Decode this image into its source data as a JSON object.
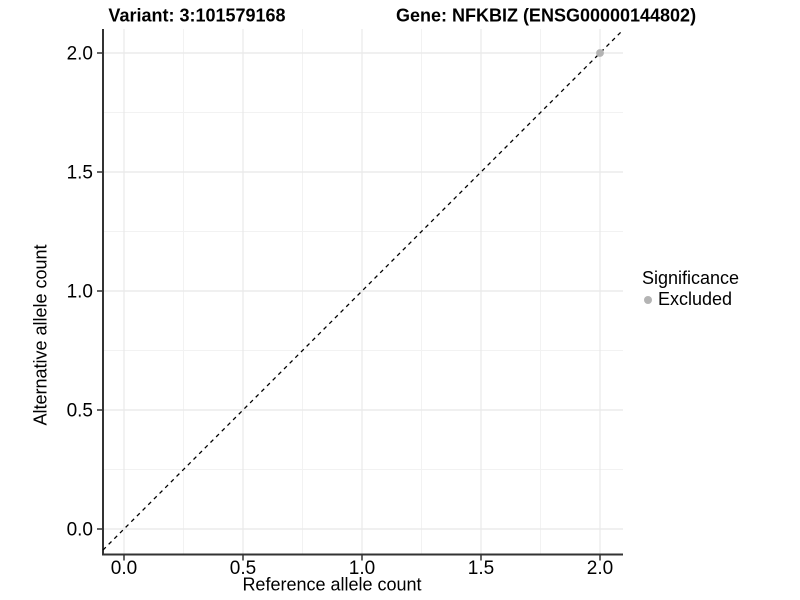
{
  "chart_data": {
    "type": "scatter",
    "titles": {
      "left": "Variant: 3:101579168",
      "right": "Gene: NFKBIZ (ENSG00000144802)"
    },
    "xlabel": "Reference allele count",
    "ylabel": "Alternative allele count",
    "xlim": [
      -0.1,
      2.1
    ],
    "ylim": [
      -0.1,
      2.1
    ],
    "x_ticks": {
      "values": [
        0,
        0.5,
        1,
        1.5,
        2
      ],
      "labels": [
        "0.0",
        "0.5",
        "1.0",
        "1.5",
        "2.0"
      ]
    },
    "y_ticks": {
      "values": [
        0,
        0.5,
        1,
        1.5,
        2
      ],
      "labels": [
        "0.0",
        "0.5",
        "1.0",
        "1.5",
        "2.0"
      ]
    },
    "grid": {
      "major": true,
      "minor": true,
      "major_color": "#e8e8e8",
      "minor_color": "#f2f2f2"
    },
    "axis_line_color": "#333333",
    "reference_line": {
      "kind": "identity",
      "slope": 1,
      "intercept": 0,
      "style": "dashed",
      "color": "#000000"
    },
    "series": [
      {
        "name": "Excluded",
        "color": "#b4b4b4",
        "points": [
          {
            "x": 2,
            "y": 2
          }
        ]
      }
    ],
    "legend": {
      "title": "Significance",
      "position": "right",
      "entries": [
        {
          "label": "Excluded",
          "color": "#b4b4b4",
          "marker": "circle"
        }
      ]
    }
  }
}
